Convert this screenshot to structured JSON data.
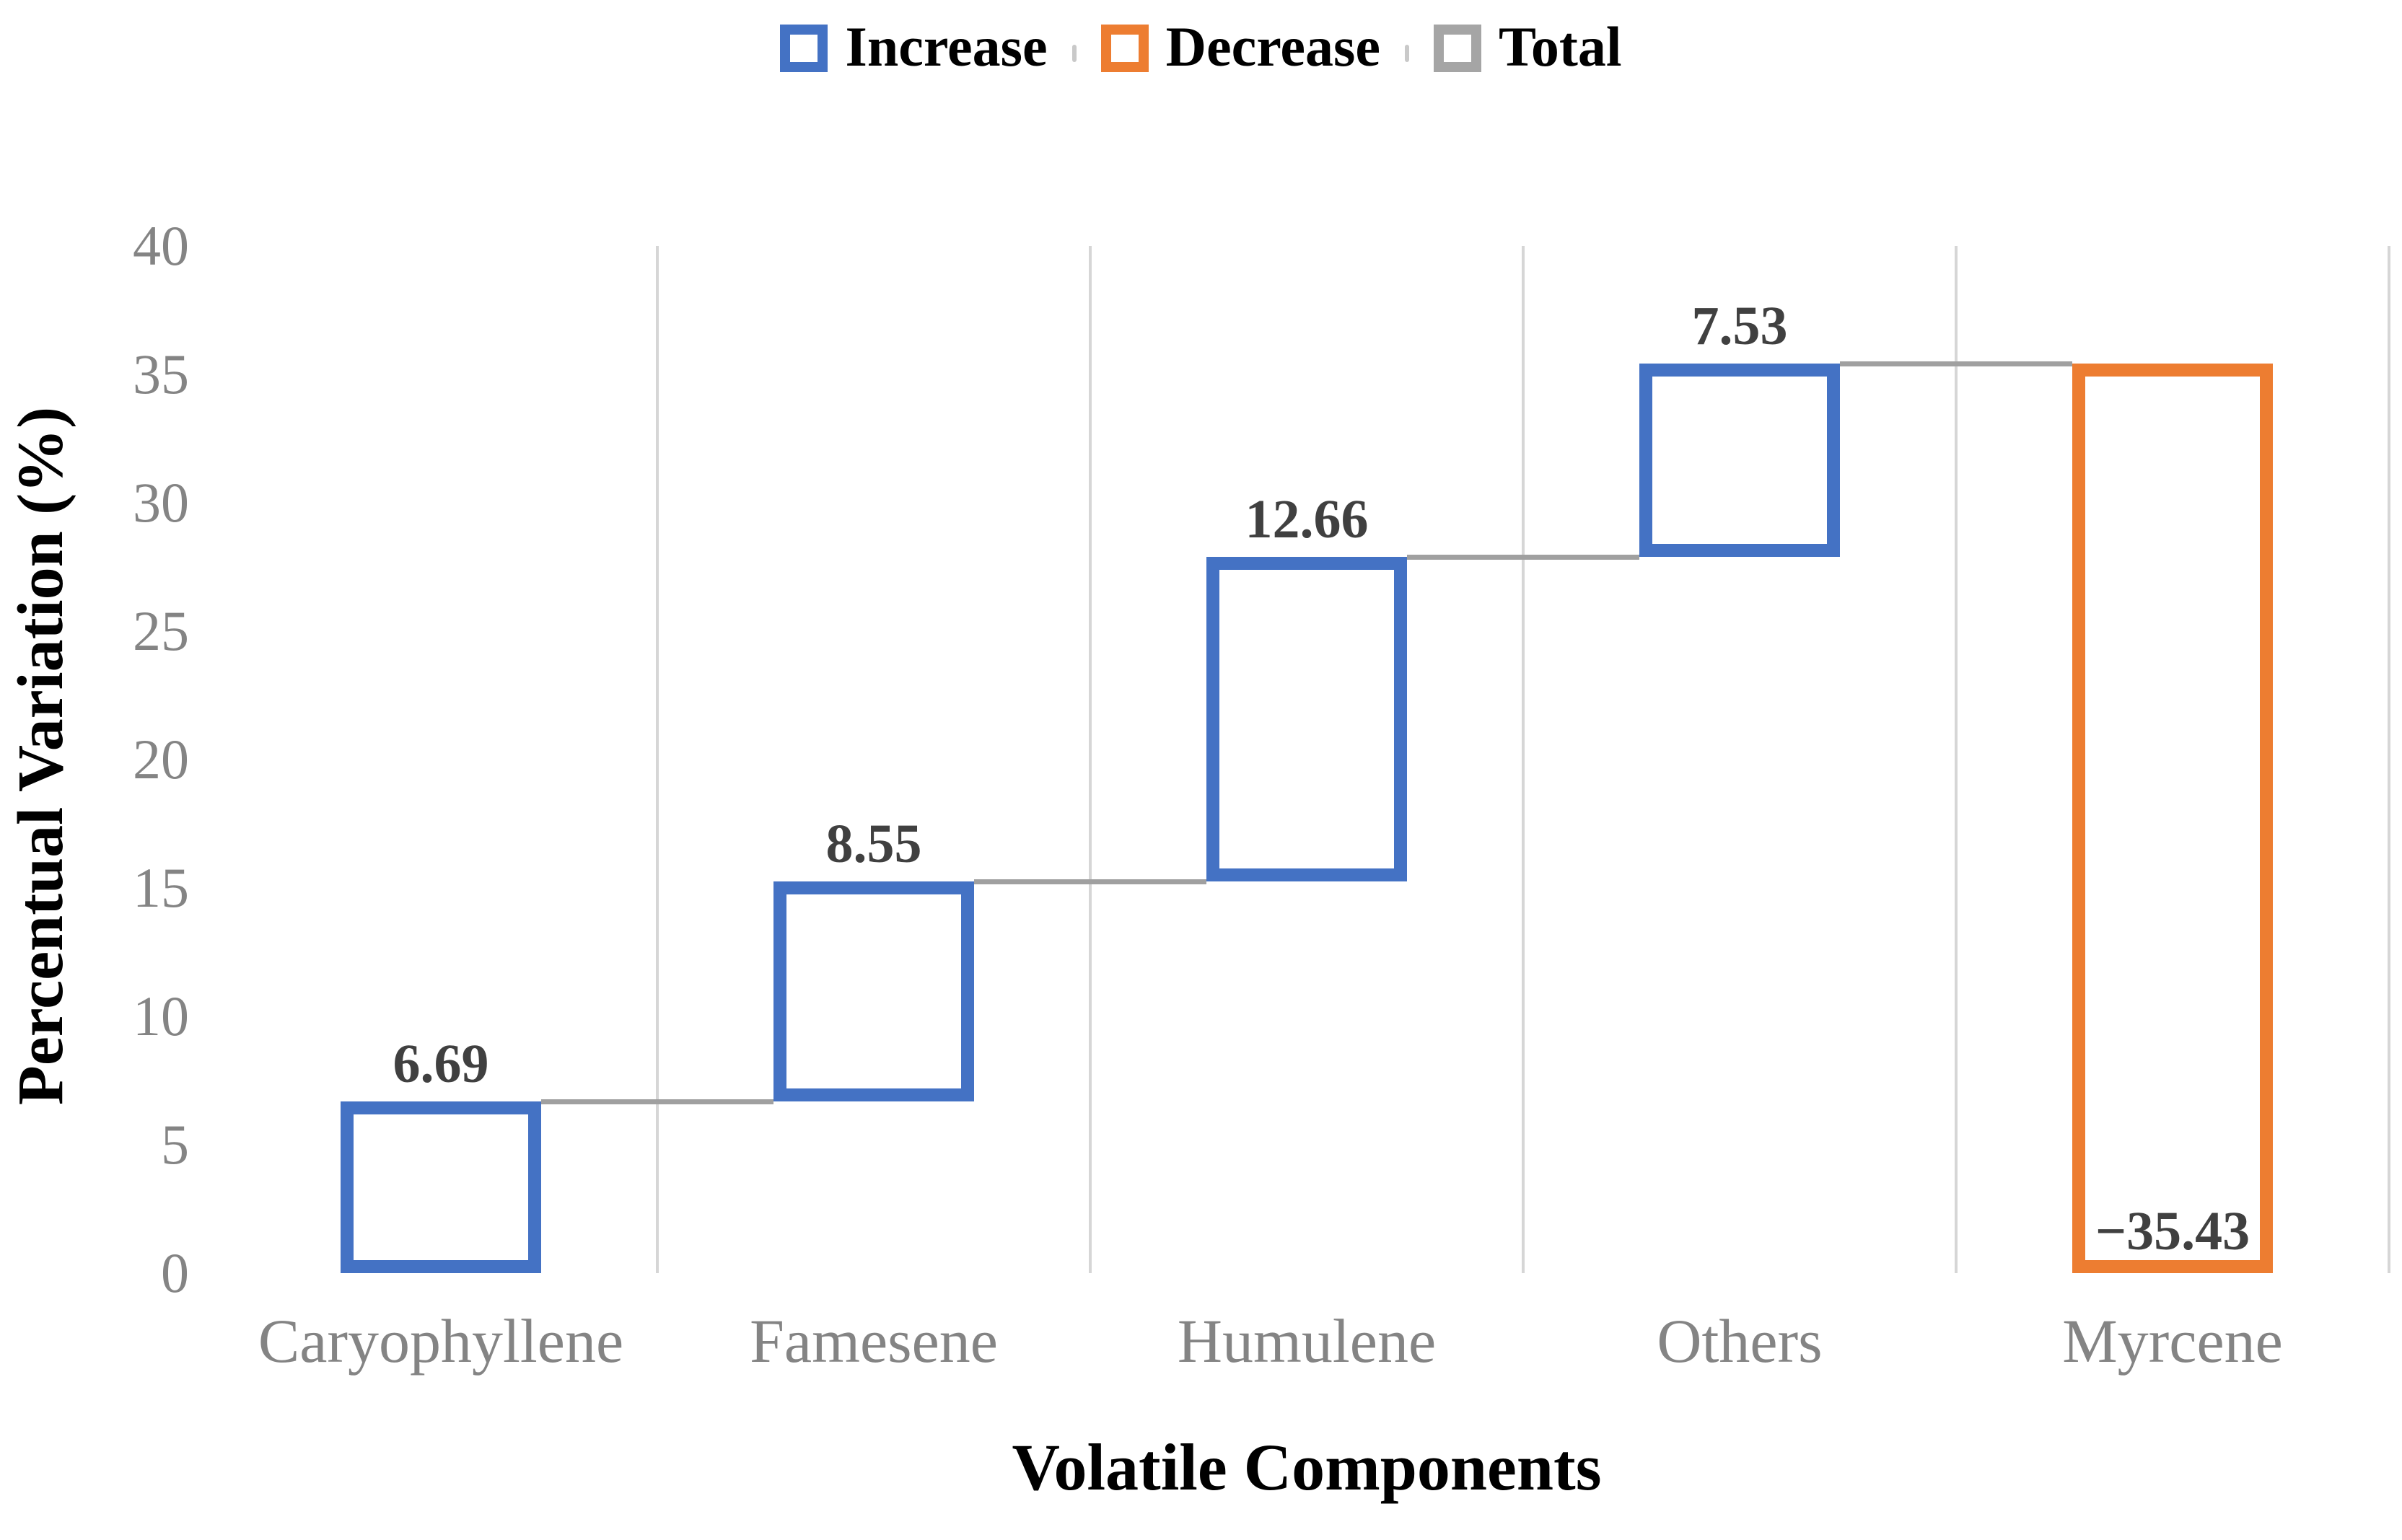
{
  "chart_data": {
    "type": "bar",
    "subtype": "waterfall",
    "title": "",
    "xlabel": "Volatile Components",
    "ylabel": "Percentual Variation (%)",
    "categories": [
      "Caryophyllene",
      "Famesene",
      "Humulene",
      "Others",
      "Myrcene"
    ],
    "values": [
      6.69,
      8.55,
      12.66,
      7.53,
      -35.43
    ],
    "data_labels": [
      "6.69",
      "8.55",
      "12.66",
      "7.53",
      "−35.43"
    ],
    "ylim": [
      0,
      40
    ],
    "yticks": [
      40,
      35,
      30,
      25,
      20,
      15,
      10,
      5,
      0
    ],
    "grid": "vertical-only",
    "legend_position": "top-center",
    "legend": [
      {
        "label": "Increase",
        "color": "#4472C4"
      },
      {
        "label": "Decrease",
        "color": "#ED7D31"
      },
      {
        "label": "Total",
        "color": "#A5A5A5"
      }
    ],
    "colors": {
      "increase": "#4472C4",
      "decrease": "#ED7D31",
      "total": "#A5A5A5",
      "connector": "#A0A0A0",
      "gridline": "#D6D6D6",
      "tick_text": "#848484",
      "data_label_text": "#404040",
      "axis_title_text": "#000000"
    }
  }
}
